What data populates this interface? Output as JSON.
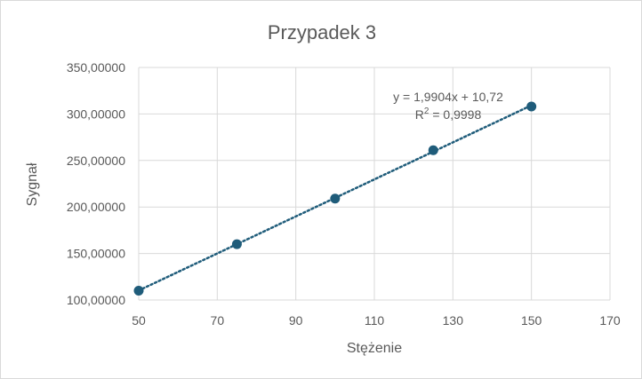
{
  "chart_data": {
    "type": "scatter",
    "title": "Przypadek 3",
    "xlabel": "Stężenie",
    "ylabel": "Sygnał",
    "xlim": [
      50,
      170
    ],
    "ylim": [
      100,
      350
    ],
    "x_ticks": [
      50,
      70,
      90,
      110,
      130,
      150,
      170
    ],
    "x_tick_labels": [
      "50",
      "70",
      "90",
      "110",
      "130",
      "150",
      "170"
    ],
    "y_ticks": [
      100,
      150,
      200,
      250,
      300,
      350
    ],
    "y_tick_labels": [
      "100,00000",
      "150,00000",
      "200,00000",
      "250,00000",
      "300,00000",
      "350,00000"
    ],
    "grid": true,
    "legend": "none",
    "series": [
      {
        "x": [
          50,
          75,
          100,
          125,
          150
        ],
        "y": [
          110,
          160,
          209,
          261,
          308
        ],
        "color": "#1f5c7a"
      }
    ],
    "trendline": {
      "type": "linear",
      "slope": 1.9904,
      "intercept": 10.72,
      "x_range": [
        50,
        150
      ],
      "style": "dotted",
      "color": "#1f5c7a",
      "equation_label": "y = 1,9904x + 10,72",
      "r2_prefix": "R",
      "r2_superscript": "2",
      "r2_value": " = 0,9998"
    }
  }
}
